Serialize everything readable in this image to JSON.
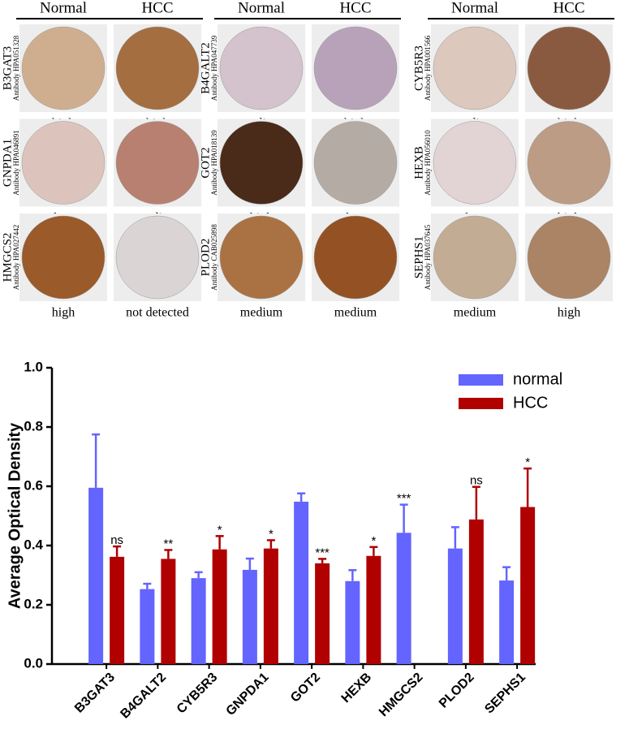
{
  "ihc_panel": {
    "columns": [
      {
        "headers": [
          "Normal",
          "HCC"
        ],
        "rows": [
          {
            "gene": "B3GAT3",
            "antibody": "Antibody HPA051328",
            "normal_level": "high",
            "hcc_level": "high"
          },
          {
            "gene": "GNPDA1",
            "antibody": "Antibody HPA046891",
            "normal_level": "low",
            "hcc_level": "medium"
          },
          {
            "gene": "HMGCS2",
            "antibody": "Antibody HPA027442",
            "normal_level": "high",
            "hcc_level": "not detected"
          }
        ]
      },
      {
        "headers": [
          "Normal",
          "HCC"
        ],
        "rows": [
          {
            "gene": "B4GALT2",
            "antibody": "Antibody HPA047739",
            "normal_level": "medium",
            "hcc_level": "high"
          },
          {
            "gene": "GOT2",
            "antibody": "Antibody HPA018139",
            "normal_level": "high",
            "hcc_level": "low"
          },
          {
            "gene": "PLOD2",
            "antibody": "Antibody CAB025898",
            "normal_level": "medium",
            "hcc_level": "medium"
          }
        ]
      },
      {
        "headers": [
          "Normal",
          "HCC"
        ],
        "rows": [
          {
            "gene": "CYB5R3",
            "antibody": "Antibody HPA001566",
            "normal_level": "medium",
            "hcc_level": "high"
          },
          {
            "gene": "HEXB",
            "antibody": "Antibody HPA056010",
            "normal_level": "low",
            "hcc_level": "high"
          },
          {
            "gene": "SEPHS1",
            "antibody": "Antibody HPA037645",
            "normal_level": "medium",
            "hcc_level": "high"
          }
        ]
      }
    ]
  },
  "chart_data": {
    "type": "bar",
    "y_label": "Average Optical Density",
    "categories": [
      "B3GAT3",
      "B4GALT2",
      "CYB5R3",
      "GNPDA1",
      "GOT2",
      "HEXB",
      "HMGCS2",
      "PLOD2",
      "SEPHS1"
    ],
    "series": [
      {
        "name": "normal",
        "color": "#6464ff",
        "values": [
          0.595,
          0.253,
          0.29,
          0.318,
          0.548,
          0.28,
          0.443,
          0.39,
          0.282
        ],
        "errors": [
          0.18,
          0.018,
          0.02,
          0.038,
          0.028,
          0.037,
          0.095,
          0.072,
          0.045
        ]
      },
      {
        "name": "HCC",
        "color": "#b00000",
        "values": [
          0.362,
          0.355,
          0.387,
          0.39,
          0.34,
          0.365,
          null,
          0.488,
          0.53
        ],
        "errors": [
          0.035,
          0.03,
          0.045,
          0.028,
          0.015,
          0.03,
          null,
          0.11,
          0.13
        ]
      }
    ],
    "significance": [
      "ns",
      "**",
      "*",
      "*",
      "***",
      "*",
      "***",
      "ns",
      "*"
    ],
    "ylim": [
      0,
      1
    ],
    "yticks": [
      {
        "value": 0,
        "label": "0.0"
      },
      0.2,
      0.4,
      0.6,
      0.8,
      {
        "value": 1,
        "label": "1.0"
      }
    ],
    "legend": "top-right"
  }
}
